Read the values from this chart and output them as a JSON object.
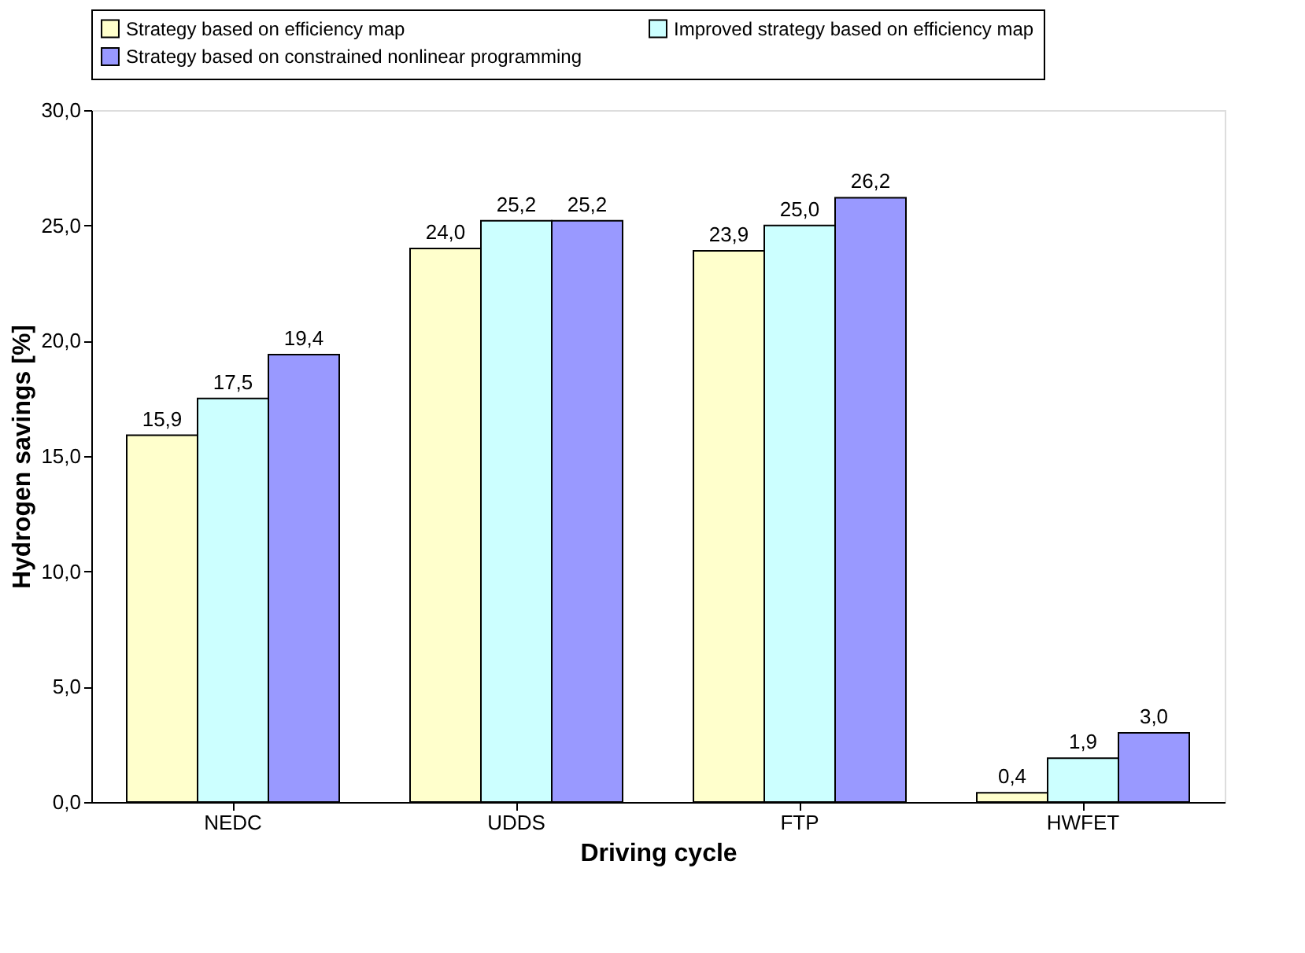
{
  "chart_data": {
    "type": "bar",
    "xlabel": "Driving cycle",
    "ylabel": "Hydrogen savings [%]",
    "categories": [
      "NEDC",
      "UDDS",
      "FTP",
      "HWFET"
    ],
    "series": [
      {
        "name": "Strategy based on efficiency map",
        "color": "#ffffcc",
        "values": [
          15.9,
          24.0,
          23.9,
          0.4
        ],
        "value_labels": [
          "15,9",
          "24,0",
          "23,9",
          "0,4"
        ]
      },
      {
        "name": "Improved strategy based on efficiency map",
        "color": "#ccffff",
        "values": [
          17.5,
          25.2,
          25.0,
          1.9
        ],
        "value_labels": [
          "17,5",
          "25,2",
          "25,0",
          "1,9"
        ]
      },
      {
        "name": "Strategy based on constrained nonlinear programming",
        "color": "#9999ff",
        "values": [
          19.4,
          25.2,
          26.2,
          3.0
        ],
        "value_labels": [
          "19,4",
          "25,2",
          "26,2",
          "3,0"
        ]
      }
    ],
    "ylim": [
      0,
      30
    ],
    "yticks": [
      {
        "value": 0,
        "label": "0,0"
      },
      {
        "value": 5,
        "label": "5,0"
      },
      {
        "value": 10,
        "label": "10,0"
      },
      {
        "value": 15,
        "label": "15,0"
      },
      {
        "value": 20,
        "label": "20,0"
      },
      {
        "value": 25,
        "label": "25,0"
      },
      {
        "value": 30,
        "label": "30,0"
      }
    ],
    "grid": false,
    "legend": "top"
  }
}
